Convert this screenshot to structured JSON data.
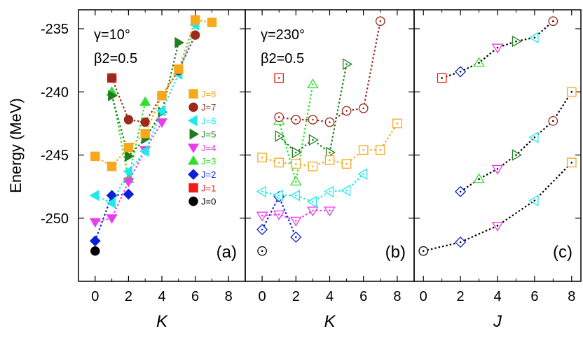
{
  "chart_data": {
    "type": "line",
    "ylabel": "Energy (MeV)",
    "ylim": [
      -255,
      -233.5
    ],
    "yticks": [
      -235,
      -240,
      -245,
      -250
    ],
    "colors": {
      "0": "#000000",
      "1": "#ee1c1c",
      "2": "#0b1fd6",
      "3": "#2fe02f",
      "4": "#ec3bec",
      "5": "#1e7d1e",
      "6": "#1ee9ee",
      "7": "#9b2a1a",
      "8": "#f7a81b"
    },
    "markers": {
      "0": "circle",
      "1": "square",
      "2": "diamond",
      "3": "triangle-up",
      "4": "triangle-down",
      "5": "triangle-right",
      "6": "triangle-left",
      "7": "circle",
      "8": "square"
    },
    "panels": [
      {
        "label": "(a)",
        "xlabel": "K",
        "xlim": [
          -1,
          9
        ],
        "xticks": [
          0,
          2,
          4,
          6,
          8
        ],
        "params": [
          "γ=10°",
          "β2=0.5"
        ],
        "filled": true,
        "legend": [
          {
            "J": "8",
            "label": "J=8"
          },
          {
            "J": "7",
            "label": "J=7"
          },
          {
            "J": "6",
            "label": "J=6"
          },
          {
            "J": "5",
            "label": "J=5"
          },
          {
            "J": "4",
            "label": "J=4"
          },
          {
            "J": "3",
            "label": "J=3"
          },
          {
            "J": "2",
            "label": "J=2"
          },
          {
            "J": "1",
            "label": "J=1"
          },
          {
            "J": "0",
            "label": "J=0"
          }
        ],
        "series": [
          {
            "J": "0",
            "x": [
              0
            ],
            "y": [
              -252.6
            ]
          },
          {
            "J": "1",
            "x": [
              1
            ],
            "y": [
              -238.9
            ]
          },
          {
            "J": "2",
            "x": [
              0,
              1,
              2
            ],
            "y": [
              -251.8,
              -248.2,
              -248.1
            ]
          },
          {
            "J": "3",
            "x": [
              1,
              2,
              3
            ],
            "y": [
              -240.0,
              -246.9,
              -240.8
            ]
          },
          {
            "J": "4",
            "x": [
              0,
              1,
              2,
              3,
              4
            ],
            "y": [
              -250.3,
              -250.0,
              -247.1,
              -244.6,
              -242.4
            ]
          },
          {
            "J": "5",
            "x": [
              1,
              2,
              3,
              4,
              5
            ],
            "y": [
              -240.3,
              -245.1,
              -243.7,
              -241.6,
              -236.1
            ]
          },
          {
            "J": "6",
            "x": [
              0,
              1,
              2,
              3,
              4,
              5,
              6
            ],
            "y": [
              -248.2,
              -248.8,
              -246.3,
              -244.7,
              -241.5,
              -238.6,
              -234.7
            ]
          },
          {
            "J": "7",
            "x": [
              1,
              2,
              3,
              4,
              5,
              6
            ],
            "y": [
              -238.9,
              -242.2,
              -242.4,
              -240.3,
              -238.3,
              -235.5
            ]
          },
          {
            "J": "8",
            "x": [
              0,
              1,
              2,
              3,
              4,
              5,
              6,
              7
            ],
            "y": [
              -245.1,
              -245.9,
              -244.4,
              -243.3,
              -240.3,
              -238.2,
              -234.3,
              -234.5
            ]
          }
        ]
      },
      {
        "label": "(b)",
        "xlabel": "K",
        "xlim": [
          -1,
          9
        ],
        "xticks": [
          0,
          2,
          4,
          6,
          8
        ],
        "params": [
          "γ=230°",
          "β2=0.5"
        ],
        "filled": false,
        "series": [
          {
            "J": "0",
            "x": [
              0
            ],
            "y": [
              -252.6
            ]
          },
          {
            "J": "1",
            "x": [
              1
            ],
            "y": [
              -238.9
            ]
          },
          {
            "J": "2",
            "x": [
              0,
              1,
              2
            ],
            "y": [
              -250.9,
              -248.3,
              -251.5
            ]
          },
          {
            "J": "3",
            "x": [
              1,
              2,
              3
            ],
            "y": [
              -242.3,
              -247.1,
              -239.4
            ]
          },
          {
            "J": "4",
            "x": [
              0,
              1,
              2,
              3,
              4
            ],
            "y": [
              -249.8,
              -249.7,
              -250.2,
              -249.4,
              -249.4
            ]
          },
          {
            "J": "5",
            "x": [
              1,
              2,
              3,
              4,
              5
            ],
            "y": [
              -243.5,
              -244.8,
              -243.8,
              -244.8,
              -237.8
            ]
          },
          {
            "J": "6",
            "x": [
              0,
              1,
              2,
              3,
              4,
              5,
              6
            ],
            "y": [
              -247.9,
              -248.2,
              -248.2,
              -248.7,
              -247.9,
              -247.8,
              -246.5
            ]
          },
          {
            "J": "7",
            "x": [
              1,
              2,
              3,
              4,
              5,
              6,
              7
            ],
            "y": [
              -242.0,
              -242.2,
              -242.2,
              -242.4,
              -241.5,
              -241.3,
              -234.4
            ]
          },
          {
            "J": "8",
            "x": [
              0,
              1,
              2,
              3,
              4,
              5,
              6,
              7,
              8
            ],
            "y": [
              -245.2,
              -245.6,
              -245.7,
              -245.9,
              -245.4,
              -245.7,
              -244.6,
              -244.6,
              -242.5
            ]
          }
        ]
      },
      {
        "label": "(c)",
        "xlabel": "J",
        "xlim": [
          -0.5,
          8.5
        ],
        "xticks": [
          0,
          2,
          4,
          6,
          8
        ],
        "filled": "dotted",
        "lines": [
          {
            "points": [
              {
                "J": "0",
                "x": 0,
                "y": -252.6
              },
              {
                "J": "2",
                "x": 2,
                "y": -251.9
              },
              {
                "J": "4",
                "x": 4,
                "y": -250.6
              },
              {
                "J": "6",
                "x": 6,
                "y": -248.6
              },
              {
                "J": "8",
                "x": 8,
                "y": -245.6
              }
            ]
          },
          {
            "points": [
              {
                "J": "2",
                "x": 2,
                "y": -247.9
              },
              {
                "J": "3",
                "x": 3,
                "y": -246.9
              },
              {
                "J": "4",
                "x": 4,
                "y": -246.1
              },
              {
                "J": "5",
                "x": 5,
                "y": -245.0
              },
              {
                "J": "6",
                "x": 6,
                "y": -243.6
              },
              {
                "J": "7",
                "x": 7,
                "y": -242.3
              },
              {
                "J": "8",
                "x": 8,
                "y": -240.0
              }
            ]
          },
          {
            "points": [
              {
                "J": "1",
                "x": 1,
                "y": -238.9
              },
              {
                "J": "2",
                "x": 2,
                "y": -238.4
              },
              {
                "J": "3",
                "x": 3,
                "y": -237.7
              },
              {
                "J": "4",
                "x": 4,
                "y": -236.5
              },
              {
                "J": "5",
                "x": 5,
                "y": -236.0
              },
              {
                "J": "6",
                "x": 6,
                "y": -235.7
              },
              {
                "J": "7",
                "x": 7,
                "y": -234.4
              }
            ]
          }
        ]
      }
    ]
  }
}
